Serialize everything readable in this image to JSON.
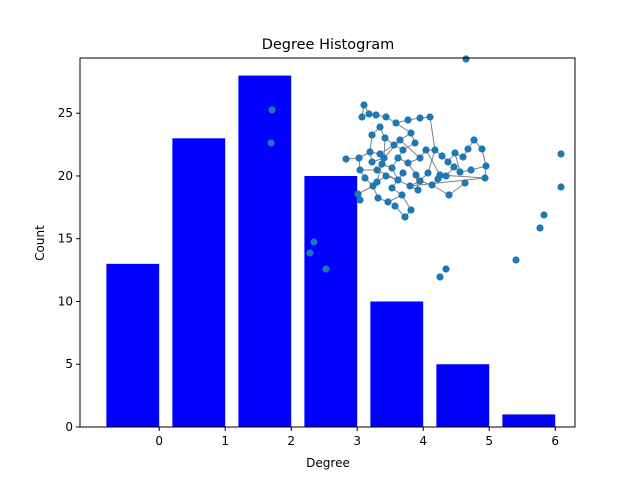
{
  "chart_data": {
    "type": "bar",
    "title": "Degree Histogram",
    "xlabel": "Degree",
    "ylabel": "Count",
    "categories": [
      "0",
      "1",
      "2",
      "3",
      "4",
      "5",
      "6"
    ],
    "values": [
      13,
      23,
      28,
      20,
      10,
      5,
      1
    ],
    "xlim": [
      -1.2,
      6.3
    ],
    "ylim": [
      0,
      29.4
    ],
    "x_ticks": [
      0,
      1,
      2,
      3,
      4,
      5,
      6
    ],
    "y_ticks": [
      0,
      5,
      10,
      15,
      20,
      25
    ],
    "bar_color": "#0000ff",
    "grid": false,
    "inset": {
      "type": "network",
      "node_color": "#1f77b4",
      "edge_color": "#808080"
    }
  }
}
